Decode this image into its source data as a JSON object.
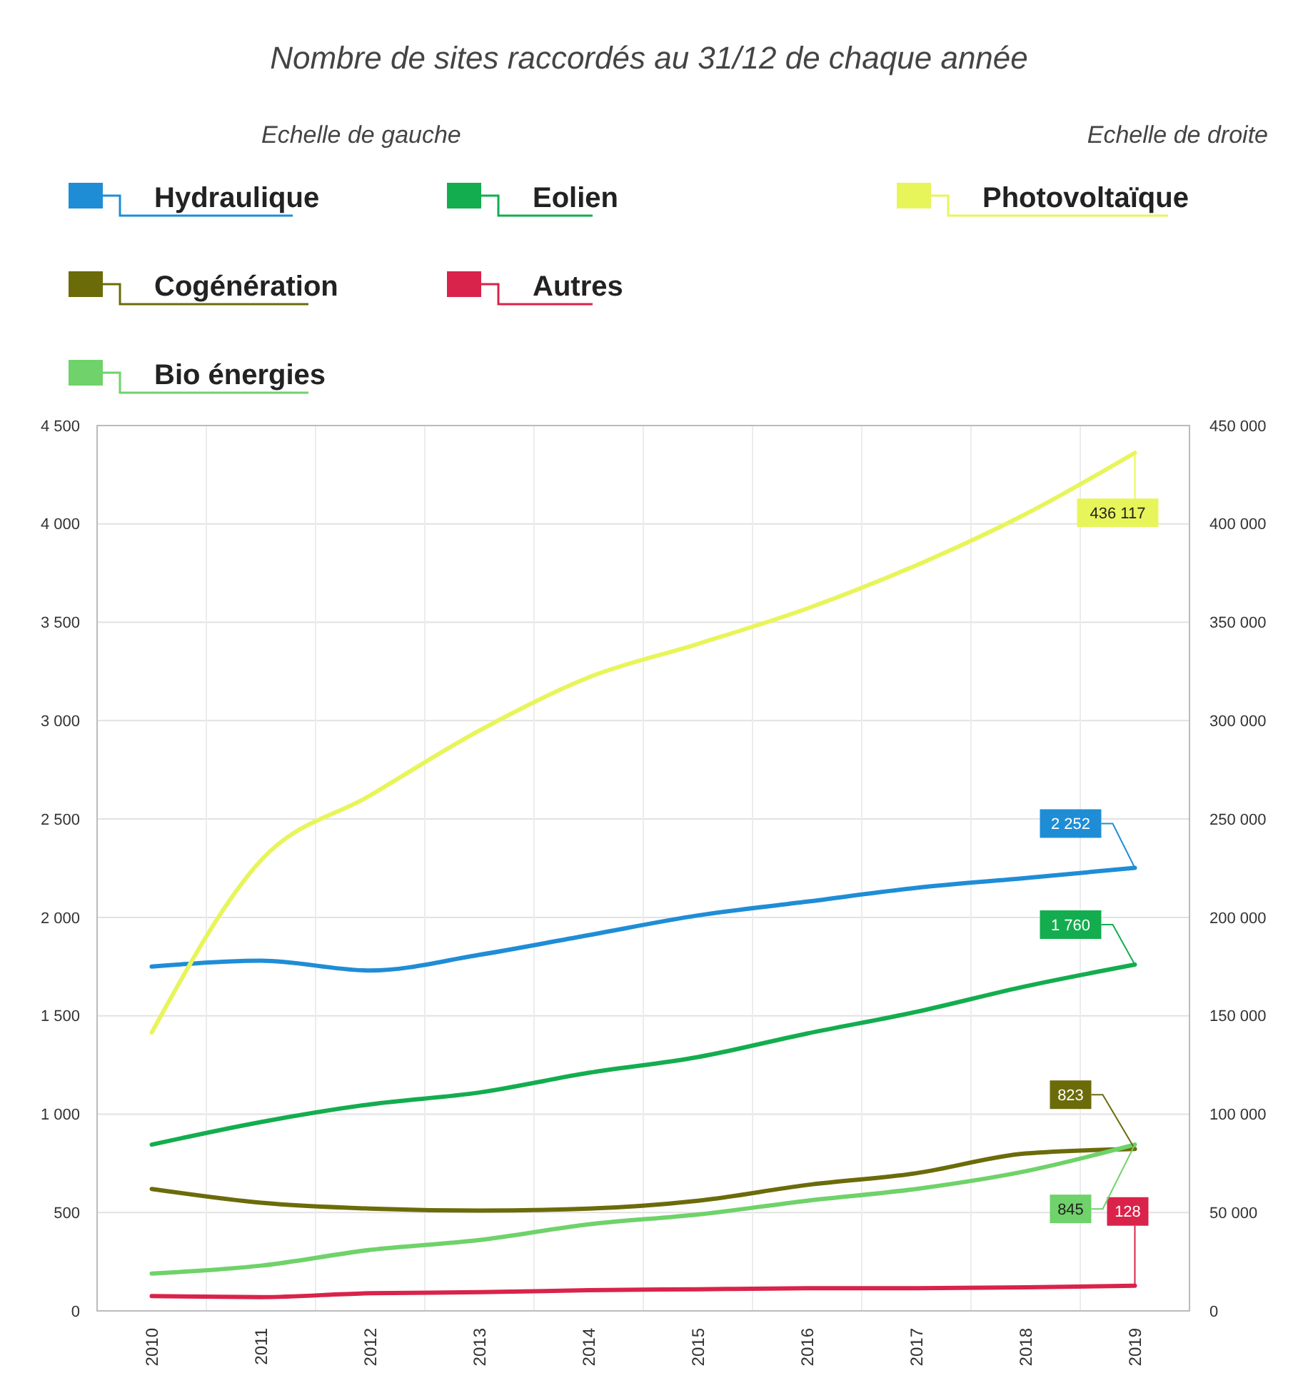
{
  "chart_data": {
    "type": "line",
    "title": "Nombre de sites raccordés au 31/12 de chaque année",
    "annotations": [
      "Echelle de gauche",
      "Echelle de droite"
    ],
    "categories": [
      "2010",
      "2011",
      "2012",
      "2013",
      "2014",
      "2015",
      "2016",
      "2017",
      "2018",
      "2019"
    ],
    "series": [
      {
        "name": "Hydraulique",
        "color": "#1f8dd6",
        "values": [
          1750,
          1780,
          1730,
          1810,
          1910,
          2010,
          2080,
          2150,
          2200,
          2252
        ],
        "value_labels": [
          null,
          null,
          null,
          null,
          null,
          null,
          null,
          null,
          null,
          "2 252"
        ]
      },
      {
        "name": "Eolien",
        "color": "#13ad4f",
        "values": [
          845,
          960,
          1050,
          1110,
          1210,
          1290,
          1410,
          1520,
          1650,
          1760
        ],
        "value_labels": [
          null,
          null,
          null,
          null,
          null,
          null,
          null,
          null,
          null,
          "1 760"
        ]
      },
      {
        "name": "Photovoltaïque",
        "color": "#e8f55a",
        "axis": "y2",
        "values": [
          141500,
          229000,
          262000,
          295000,
          322000,
          339000,
          357000,
          379000,
          405000,
          436117
        ],
        "value_labels": [
          null,
          null,
          null,
          null,
          null,
          null,
          null,
          null,
          null,
          "436 117"
        ]
      },
      {
        "name": "Cogénération",
        "color": "#6b6b0a",
        "values": [
          620,
          550,
          520,
          510,
          520,
          560,
          640,
          700,
          800,
          823
        ],
        "value_labels": [
          null,
          null,
          null,
          null,
          null,
          null,
          null,
          null,
          null,
          "823"
        ]
      },
      {
        "name": "Autres",
        "color": "#d9234a",
        "values": [
          75,
          70,
          90,
          95,
          105,
          110,
          115,
          115,
          120,
          128
        ],
        "value_labels": [
          null,
          null,
          null,
          null,
          null,
          null,
          null,
          null,
          null,
          "128"
        ]
      },
      {
        "name": "Bio énergies",
        "color": "#6fd26a",
        "values": [
          190,
          230,
          310,
          360,
          440,
          490,
          560,
          620,
          710,
          845
        ],
        "value_labels": [
          null,
          null,
          null,
          null,
          null,
          null,
          null,
          null,
          null,
          "845"
        ]
      }
    ],
    "ylim": [
      0,
      4500
    ],
    "yticks": [
      0,
      {
        "value": 500,
        "label": "500"
      },
      {
        "value": 1000,
        "label": "1 000"
      },
      {
        "value": 1500,
        "label": "1 500"
      },
      {
        "value": 2000,
        "label": "2 000"
      },
      {
        "value": 2500,
        "label": "2 500"
      },
      {
        "value": 3000,
        "label": "3 000"
      },
      {
        "value": 3500,
        "label": "3 500"
      },
      {
        "value": 4000,
        "label": "4 000"
      },
      {
        "value": 4500,
        "label": "4 500"
      }
    ],
    "y2lim": [
      0,
      450000
    ],
    "y2ticks": [
      0,
      {
        "value": 50000,
        "label": "50 000"
      },
      {
        "value": 100000,
        "label": "100 000"
      },
      {
        "value": 150000,
        "label": "150 000"
      },
      {
        "value": 200000,
        "label": "200 000"
      },
      {
        "value": 250000,
        "label": "250 000"
      },
      {
        "value": 300000,
        "label": "300 000"
      },
      {
        "value": 350000,
        "label": "350 000"
      },
      {
        "value": 400000,
        "label": "400 000"
      },
      {
        "value": 450000,
        "label": "450 000"
      }
    ],
    "grid": true,
    "legend": "top"
  }
}
